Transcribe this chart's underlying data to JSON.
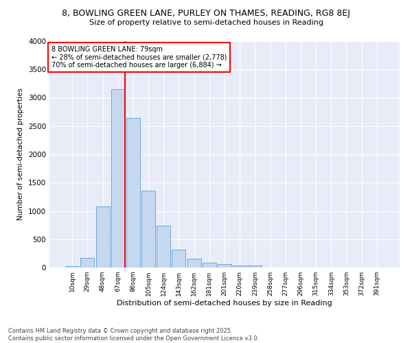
{
  "title": "8, BOWLING GREEN LANE, PURLEY ON THAMES, READING, RG8 8EJ",
  "subtitle": "Size of property relative to semi-detached houses in Reading",
  "xlabel": "Distribution of semi-detached houses by size in Reading",
  "ylabel": "Number of semi-detached properties",
  "property_label": "8 BOWLING GREEN LANE: 79sqm",
  "pct_smaller": 28,
  "pct_larger": 70,
  "n_smaller": 2778,
  "n_larger": 6884,
  "bar_color": "#c5d8f0",
  "bar_edge_color": "#6aaad4",
  "vline_color": "red",
  "plot_bg_color": "#e8ecf8",
  "categories": [
    "10sqm",
    "29sqm",
    "48sqm",
    "67sqm",
    "86sqm",
    "105sqm",
    "124sqm",
    "143sqm",
    "162sqm",
    "181sqm",
    "201sqm",
    "220sqm",
    "239sqm",
    "258sqm",
    "277sqm",
    "296sqm",
    "315sqm",
    "334sqm",
    "353sqm",
    "372sqm",
    "391sqm"
  ],
  "values": [
    25,
    165,
    1080,
    3150,
    2640,
    1360,
    740,
    310,
    160,
    80,
    55,
    40,
    38,
    5,
    5,
    5,
    3,
    2,
    1,
    1,
    1
  ],
  "ylim": [
    0,
    4000
  ],
  "yticks": [
    0,
    500,
    1000,
    1500,
    2000,
    2500,
    3000,
    3500,
    4000
  ],
  "footnote": "Contains HM Land Registry data © Crown copyright and database right 2025.\nContains public sector information licensed under the Open Government Licence v3.0.",
  "vline_x_index": 3.47
}
